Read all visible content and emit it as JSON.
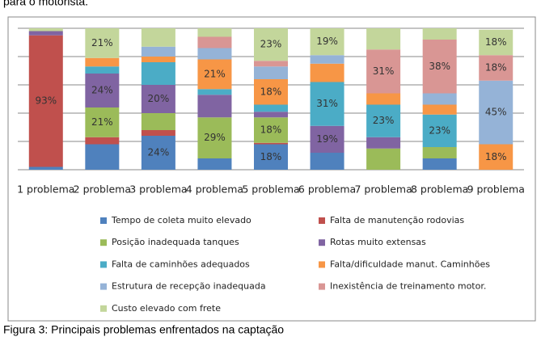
{
  "header_text": "para o motorista.",
  "caption": "Figura 3: Principais problemas enfrentados na captação",
  "chart_data": {
    "type": "stacked_bar",
    "categories": [
      "1 problema",
      "2 problema",
      "3 problema",
      "4 problema",
      "5 problema",
      "6 problema",
      "7 problema",
      "8 problema",
      "9 problema"
    ],
    "ylim": [
      0,
      100
    ],
    "yticks": [
      0,
      20,
      40,
      60,
      80,
      100
    ],
    "grid": true,
    "series": [
      {
        "name": "Tempo de coleta muito elevado",
        "color": "#4f81bd",
        "values": [
          2,
          18,
          24,
          8,
          18,
          12,
          0,
          8,
          0
        ],
        "value_labels": [
          null,
          null,
          "24%",
          null,
          "18%",
          null,
          null,
          null,
          null
        ]
      },
      {
        "name": "Falta de manutenção rodovias",
        "color": "#c0504d",
        "values": [
          93,
          5,
          4,
          0,
          1,
          0,
          0,
          0,
          0
        ],
        "value_labels": [
          "93%",
          null,
          null,
          null,
          null,
          null,
          null,
          null,
          null
        ]
      },
      {
        "name": "Posição inadequada tanques",
        "color": "#9bbb59",
        "values": [
          0,
          21,
          12,
          29,
          18,
          0,
          15,
          8,
          0
        ],
        "value_labels": [
          null,
          "21%",
          null,
          "29%",
          "18%",
          null,
          null,
          null,
          null
        ]
      },
      {
        "name": "Rotas muito extensas",
        "color": "#8064a2",
        "values": [
          3,
          24,
          20,
          16,
          4,
          19,
          8,
          0,
          0
        ],
        "value_labels": [
          null,
          "24%",
          "20%",
          null,
          null,
          "19%",
          null,
          null,
          null
        ]
      },
      {
        "name": "Falta de caminhões adequados",
        "color": "#4bacc6",
        "values": [
          0,
          5,
          16,
          4,
          5,
          31,
          23,
          23,
          0
        ],
        "value_labels": [
          null,
          null,
          null,
          null,
          null,
          "31%",
          "23%",
          "23%",
          null
        ]
      },
      {
        "name": "Falta/dificuldade manut. Caminhões",
        "color": "#f79646",
        "values": [
          0,
          6,
          4,
          21,
          18,
          13,
          8,
          7,
          18
        ],
        "value_labels": [
          null,
          null,
          null,
          "21%",
          "18%",
          null,
          null,
          null,
          "18%"
        ]
      },
      {
        "name": "Estrutura de recepção inadequada",
        "color": "#95b3d7",
        "values": [
          0,
          0,
          7,
          8,
          9,
          6,
          0,
          8,
          45
        ],
        "value_labels": [
          null,
          null,
          null,
          null,
          null,
          null,
          null,
          null,
          "45%"
        ]
      },
      {
        "name": "Inexistência de treinamento motor.",
        "color": "#d99694",
        "values": [
          0,
          0,
          0,
          8,
          4,
          0,
          31,
          38,
          18
        ],
        "value_labels": [
          null,
          null,
          null,
          null,
          null,
          null,
          "31%",
          "38%",
          "18%"
        ]
      },
      {
        "name": "Custo elevado com frete",
        "color": "#c3d69b",
        "values": [
          2,
          21,
          13,
          6,
          23,
          19,
          15,
          8,
          18
        ],
        "value_labels": [
          null,
          "21%",
          null,
          null,
          "23%",
          "19%",
          null,
          null,
          "18%"
        ]
      }
    ]
  }
}
